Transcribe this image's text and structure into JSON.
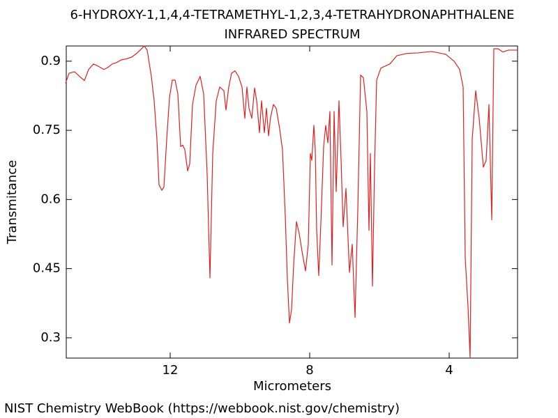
{
  "chart_data": {
    "type": "line",
    "title": "6-HYDROXY-1,1,4,4-TETRAMETHYL-1,2,3,4-TETRAHYDRONAPHTHALENE",
    "subtitle": "INFRARED SPECTRUM",
    "xlabel": "Micrometers",
    "ylabel": "Transmitance",
    "source": "NIST Chemistry WebBook (https://webbook.nist.gov/chemistry)",
    "color": "#e02020",
    "grid": false,
    "xlim": [
      14.98,
      2.04
    ],
    "ylim": [
      0.256,
      0.933
    ],
    "xticks": [
      12,
      8,
      4
    ],
    "yticks": [
      0.3,
      0.45,
      0.6,
      0.75,
      0.9
    ],
    "x": [
      15.0,
      14.9,
      14.74,
      14.6,
      14.46,
      14.34,
      14.2,
      14.06,
      13.9,
      13.8,
      13.66,
      13.54,
      13.4,
      13.26,
      13.1,
      12.96,
      12.82,
      12.74,
      12.66,
      12.54,
      12.46,
      12.38,
      12.32,
      12.24,
      12.18,
      12.1,
      12.02,
      11.94,
      11.86,
      11.78,
      11.7,
      11.64,
      11.58,
      11.5,
      11.44,
      11.36,
      11.26,
      11.14,
      11.04,
      10.94,
      10.86,
      10.78,
      10.68,
      10.58,
      10.46,
      10.4,
      10.32,
      10.24,
      10.14,
      10.04,
      9.94,
      9.86,
      9.8,
      9.74,
      9.66,
      9.58,
      9.52,
      9.44,
      9.38,
      9.3,
      9.24,
      9.18,
      9.12,
      9.04,
      8.96,
      8.86,
      8.78,
      8.7,
      8.64,
      8.58,
      8.52,
      8.46,
      8.38,
      8.3,
      8.22,
      8.12,
      8.04,
      7.98,
      7.94,
      7.88,
      7.84,
      7.8,
      7.74,
      7.68,
      7.6,
      7.54,
      7.48,
      7.42,
      7.36,
      7.3,
      7.24,
      7.16,
      7.1,
      7.04,
      6.96,
      6.86,
      6.78,
      6.7,
      6.62,
      6.54,
      6.46,
      6.36,
      6.3,
      6.26,
      6.2,
      6.14,
      6.08,
      5.96,
      5.7,
      5.5,
      5.2,
      4.9,
      4.5,
      4.1,
      3.86,
      3.7,
      3.6,
      3.54,
      3.46,
      3.4,
      3.34,
      3.24,
      3.14,
      3.02,
      2.94,
      2.86,
      2.78,
      2.72,
      2.6,
      2.46,
      2.3,
      2.04
    ],
    "values": [
      0.852,
      0.874,
      0.877,
      0.867,
      0.858,
      0.882,
      0.894,
      0.889,
      0.882,
      0.886,
      0.894,
      0.897,
      0.903,
      0.905,
      0.909,
      0.917,
      0.927,
      0.933,
      0.924,
      0.867,
      0.814,
      0.73,
      0.632,
      0.62,
      0.627,
      0.73,
      0.821,
      0.859,
      0.859,
      0.829,
      0.715,
      0.718,
      0.708,
      0.662,
      0.677,
      0.806,
      0.848,
      0.867,
      0.829,
      0.655,
      0.43,
      0.7,
      0.814,
      0.844,
      0.836,
      0.794,
      0.844,
      0.874,
      0.879,
      0.867,
      0.844,
      0.776,
      0.844,
      0.798,
      0.776,
      0.842,
      0.814,
      0.745,
      0.814,
      0.745,
      0.798,
      0.738,
      0.779,
      0.806,
      0.798,
      0.753,
      0.708,
      0.564,
      0.427,
      0.332,
      0.361,
      0.458,
      0.552,
      0.526,
      0.488,
      0.445,
      0.503,
      0.7,
      0.685,
      0.761,
      0.708,
      0.533,
      0.435,
      0.548,
      0.715,
      0.761,
      0.723,
      0.791,
      0.458,
      0.791,
      0.617,
      0.814,
      0.685,
      0.541,
      0.624,
      0.442,
      0.503,
      0.344,
      0.579,
      0.87,
      0.864,
      0.791,
      0.533,
      0.7,
      0.412,
      0.67,
      0.859,
      0.885,
      0.894,
      0.912,
      0.917,
      0.918,
      0.921,
      0.915,
      0.9,
      0.882,
      0.844,
      0.473,
      0.367,
      0.256,
      0.73,
      0.836,
      0.776,
      0.67,
      0.685,
      0.806,
      0.556,
      0.927,
      0.927,
      0.92,
      0.924,
      0.924
    ]
  }
}
